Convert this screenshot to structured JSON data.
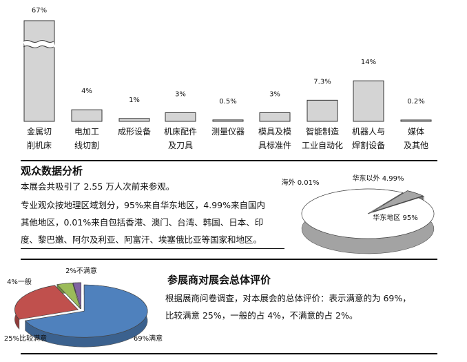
{
  "chart_data": [
    {
      "type": "bar",
      "categories": [
        "金属切\n削机床",
        "电加工\n线切割",
        "成形设备",
        "机床配件\n及刀具",
        "测量仪器",
        "模具及模\n具标准件",
        "智能制造\n工业自动化",
        "机器人与\n焊割设备",
        "媒体\n及其他"
      ],
      "values": [
        67,
        4,
        1,
        3,
        0.5,
        3,
        7.3,
        14,
        0.2
      ],
      "value_labels": [
        "67%",
        "4%",
        "1%",
        "3%",
        "0.5%",
        "3%",
        "7.3%",
        "14%",
        "0.2%"
      ],
      "axis_break": true,
      "colors": {
        "bar": "#d4d4d4",
        "stroke": "#333333"
      }
    },
    {
      "type": "pie",
      "labels": [
        "华东地区",
        "华东以外",
        "海外"
      ],
      "values": [
        95,
        4.99,
        0.01
      ],
      "value_labels": [
        "华东地区 95%",
        "华东以外  4.99%",
        "海外 0.01%"
      ],
      "colors": [
        "#ffffff",
        "#a6a6a6",
        "#3f3f3f"
      ]
    },
    {
      "type": "pie",
      "labels": [
        "满意",
        "比较满意",
        "一般",
        "不满意"
      ],
      "values": [
        69,
        25,
        4,
        2
      ],
      "value_labels": [
        "69%满意",
        "25%比较满意",
        "4%一般",
        "2%不满意"
      ],
      "colors": [
        "#4f81bd",
        "#c0504d",
        "#9bbb59",
        "#8064a2"
      ]
    }
  ],
  "audience": {
    "title": "观众数据分析",
    "p1": "本展会共吸引了 2.55 万人次前来参观。",
    "p2_l1": "专业观众按地理区域划分，95%来自华东地区，4.99%来自国内",
    "p2_l2": "其他地区，0.01%来自包括香港、澳门、台湾、韩国、日本、印",
    "p2_l3": "度、黎巴嫩、阿尔及利亚、阿富汗、埃塞俄比亚等国家和地区。"
  },
  "exhibitor": {
    "title": "参展商对展会总体评价",
    "p_l1": "根据展商问卷调查，对本展会的总体评价：表示满意的为 69%，",
    "p_l2": "比较满意 25%，一般的占 4%，不满意的占 2%。"
  }
}
